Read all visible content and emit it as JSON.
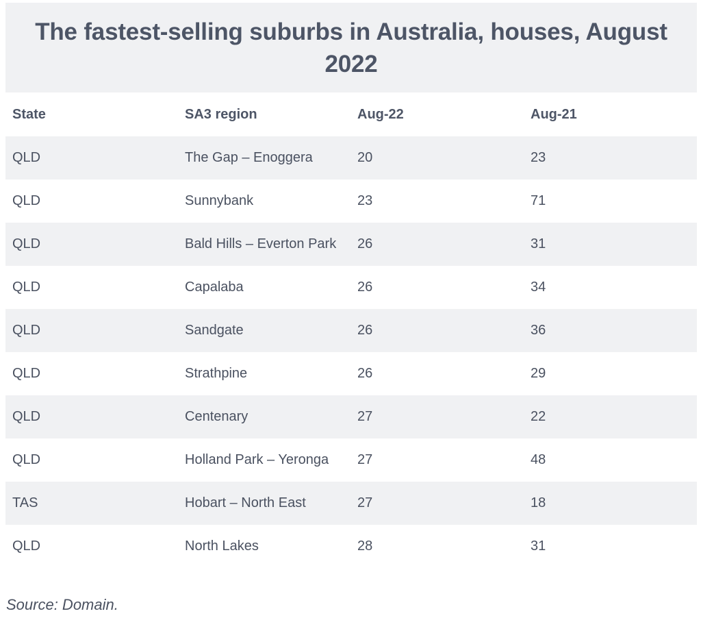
{
  "title": "The fastest-selling suburbs in Australia, houses, August 2022",
  "table": {
    "headers": [
      "State",
      "SA3 region",
      "Aug-22",
      "Aug-21"
    ],
    "rows": [
      [
        "QLD",
        "The Gap – Enoggera",
        "20",
        "23"
      ],
      [
        "QLD",
        "Sunnybank",
        "23",
        "71"
      ],
      [
        "QLD",
        "Bald Hills – Everton Park",
        "26",
        "31"
      ],
      [
        "QLD",
        "Capalaba",
        "26",
        "34"
      ],
      [
        "QLD",
        "Sandgate",
        "26",
        "36"
      ],
      [
        "QLD",
        "Strathpine",
        "26",
        "29"
      ],
      [
        "QLD",
        "Centenary",
        "27",
        "22"
      ],
      [
        "QLD",
        "Holland Park – Yeronga",
        "27",
        "48"
      ],
      [
        "TAS",
        "Hobart – North East",
        "27",
        "18"
      ],
      [
        "QLD",
        "North Lakes",
        "28",
        "31"
      ]
    ]
  },
  "source": "Source: Domain.",
  "colors": {
    "band": "#f0f1f3",
    "text": "#4a5160"
  }
}
